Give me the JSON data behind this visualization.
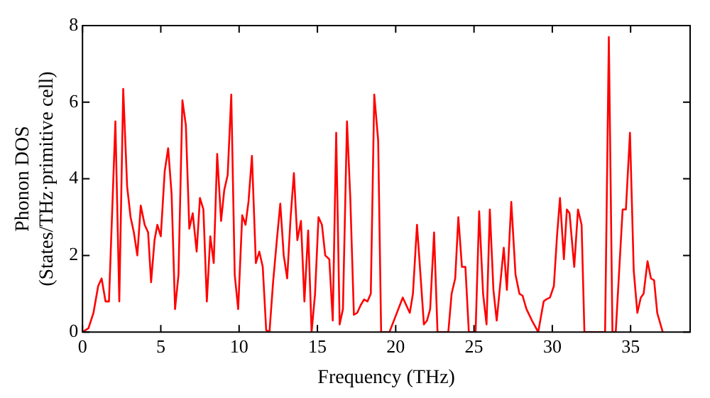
{
  "chart_data": {
    "type": "line",
    "xlabel": "Frequency (THz)",
    "ylabel": "Phonon DOS\n(States/THz·primitive cell)",
    "xlim": [
      0,
      38.8
    ],
    "xticks": [
      0,
      5,
      10,
      15,
      20,
      25,
      30,
      35
    ],
    "ylim": [
      0,
      8
    ],
    "yticks": [
      0,
      2,
      4,
      6,
      8
    ],
    "grid": false,
    "legend": false,
    "marker": "none",
    "line_style": "solid",
    "series": [
      {
        "color": "#ff0000",
        "x": [
          0,
          0.38,
          0.7,
          1.0,
          1.22,
          1.47,
          1.69,
          2.1,
          2.35,
          2.6,
          2.85,
          3.07,
          3.28,
          3.5,
          3.72,
          3.97,
          4.19,
          4.38,
          4.6,
          4.78,
          5.0,
          5.25,
          5.47,
          5.69,
          5.91,
          6.13,
          6.38,
          6.6,
          6.82,
          7.04,
          7.29,
          7.5,
          7.72,
          7.94,
          8.16,
          8.38,
          8.6,
          8.85,
          9.05,
          9.27,
          9.5,
          9.72,
          9.94,
          10.2,
          10.41,
          10.6,
          10.82,
          11.07,
          11.29,
          11.51,
          11.73,
          11.94,
          12.17,
          12.41,
          12.63,
          12.85,
          13.07,
          13.29,
          13.5,
          13.72,
          13.95,
          14.17,
          14.41,
          14.63,
          14.85,
          15.07,
          15.29,
          15.5,
          15.76,
          15.98,
          16.2,
          16.42,
          16.63,
          16.89,
          17.1,
          17.33,
          17.54,
          17.76,
          17.98,
          18.2,
          18.41,
          18.63,
          18.88,
          19.07,
          19.6,
          19.98,
          20.45,
          20.9,
          21.1,
          21.36,
          21.8,
          22.0,
          22.2,
          22.45,
          22.67,
          23.36,
          23.57,
          23.8,
          24.0,
          24.23,
          24.45,
          24.67,
          25.1,
          25.33,
          25.58,
          25.8,
          26.01,
          26.24,
          26.45,
          26.9,
          27.1,
          27.38,
          27.65,
          27.9,
          28.1,
          28.35,
          28.7,
          29.1,
          29.45,
          29.6,
          29.85,
          30.1,
          30.3,
          30.49,
          30.74,
          30.93,
          31.1,
          31.4,
          31.64,
          31.87,
          32.05,
          33.37,
          33.61,
          33.84,
          34.05,
          34.49,
          34.7,
          34.96,
          35.2,
          35.43,
          35.65,
          35.83,
          36.08,
          36.3,
          36.5,
          36.7,
          37.05
        ],
        "values": [
          0,
          0.1,
          0.5,
          1.2,
          1.4,
          0.8,
          0.8,
          5.5,
          0.8,
          6.35,
          3.8,
          3.0,
          2.6,
          2.0,
          3.3,
          2.8,
          2.6,
          1.3,
          2.4,
          2.8,
          2.5,
          4.2,
          4.8,
          3.6,
          0.6,
          1.5,
          6.05,
          5.4,
          2.7,
          3.1,
          2.1,
          3.5,
          3.2,
          0.8,
          2.5,
          1.8,
          4.65,
          2.9,
          3.7,
          4.1,
          6.2,
          1.5,
          0.6,
          3.05,
          2.8,
          3.4,
          4.6,
          1.8,
          2.1,
          1.7,
          0.05,
          0,
          1.3,
          2.4,
          3.35,
          2.0,
          1.4,
          3.0,
          4.15,
          2.4,
          2.9,
          0.8,
          2.65,
          0,
          1.0,
          3.0,
          2.8,
          2.0,
          1.9,
          0.3,
          5.2,
          0.2,
          0.6,
          5.5,
          3.5,
          0.45,
          0.5,
          0.7,
          0.85,
          0.8,
          1.0,
          6.2,
          5.0,
          0,
          0,
          0.4,
          0.9,
          0.5,
          1.0,
          2.8,
          0.2,
          0.3,
          0.6,
          2.6,
          0,
          0,
          1.0,
          1.4,
          3.0,
          1.7,
          1.7,
          0,
          0,
          3.15,
          1.0,
          0.2,
          3.2,
          1.1,
          0.3,
          2.2,
          1.1,
          3.4,
          1.5,
          1.0,
          0.95,
          0.6,
          0.3,
          0,
          0.8,
          0.85,
          0.9,
          1.2,
          2.5,
          3.5,
          1.9,
          3.2,
          3.1,
          1.7,
          3.2,
          2.8,
          0,
          0,
          7.7,
          0,
          0,
          3.2,
          3.2,
          5.2,
          1.6,
          0.5,
          0.9,
          1.0,
          1.85,
          1.4,
          1.35,
          0.5,
          0
        ]
      }
    ]
  }
}
